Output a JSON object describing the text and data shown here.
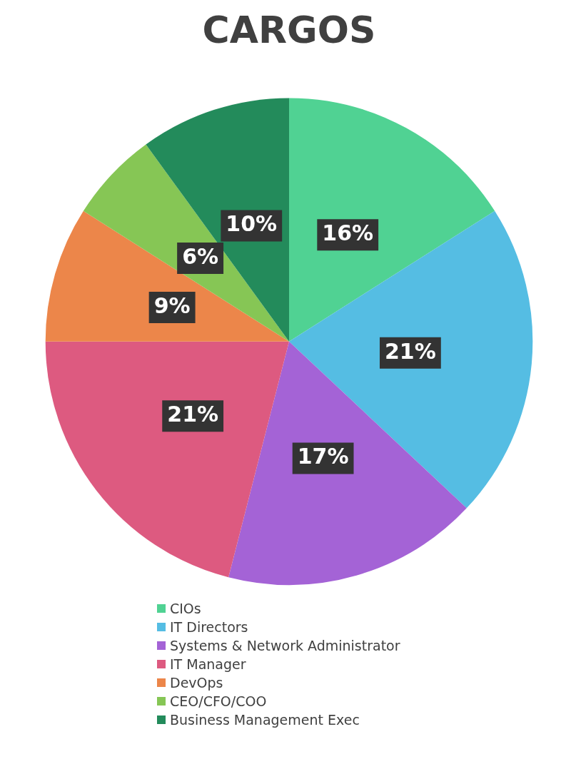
{
  "chart_data": {
    "type": "pie",
    "title": "CARGOS",
    "categories": [
      "CIOs",
      "IT Directors",
      "Systems & Network Administrator",
      "IT Manager",
      "DevOps",
      "CEO/CFO/COO",
      "Business Management Exec"
    ],
    "values": [
      16,
      21,
      17,
      21,
      9,
      6,
      10
    ],
    "colors": [
      "#50d293",
      "#55bde3",
      "#a463d6",
      "#dd5a80",
      "#ec864a",
      "#86c655",
      "#238b5b"
    ],
    "value_labels": [
      "16%",
      "21%",
      "17%",
      "21%",
      "9%",
      "6%",
      "10%"
    ],
    "legend": "bottom"
  }
}
